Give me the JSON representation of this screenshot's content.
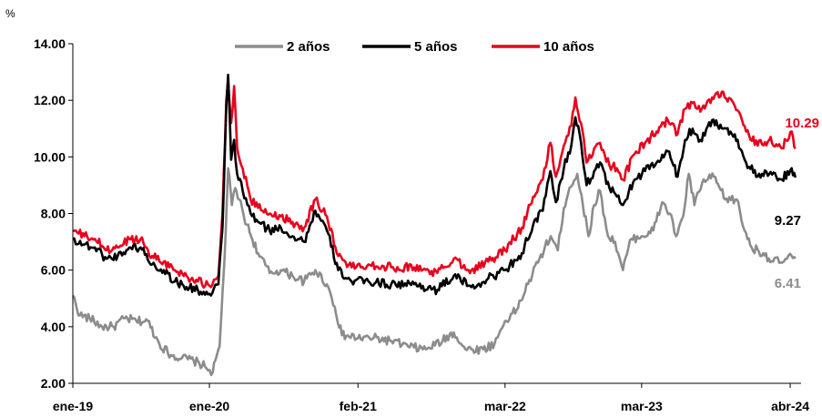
{
  "chart_data": {
    "type": "line",
    "y_unit": "%",
    "ylim": [
      2.0,
      14.0
    ],
    "y_ticks": [
      "2.00",
      "4.00",
      "6.00",
      "8.00",
      "10.00",
      "12.00",
      "14.00"
    ],
    "x_range": [
      "2019-01-01",
      "2024-04-30"
    ],
    "x_ticks": [
      {
        "label": "ene-19",
        "date": "2019-01-01"
      },
      {
        "label": "ene-20",
        "date": "2020-01-01"
      },
      {
        "label": "feb-21",
        "date": "2021-02-01"
      },
      {
        "label": "mar-22",
        "date": "2022-03-01"
      },
      {
        "label": "mar-23",
        "date": "2023-03-01"
      },
      {
        "label": "abr-24",
        "date": "2024-04-01"
      }
    ],
    "grid": false,
    "legend_position": "top",
    "series": [
      {
        "name": "2 años",
        "color": "#8c8c8c",
        "end_label": "6.41",
        "points": [
          [
            "2019-01-01",
            5.1
          ],
          [
            "2019-01-20",
            4.4
          ],
          [
            "2019-02-15",
            4.3
          ],
          [
            "2019-03-20",
            4.0
          ],
          [
            "2019-04-20",
            4.0
          ],
          [
            "2019-05-20",
            4.3
          ],
          [
            "2019-06-20",
            4.2
          ],
          [
            "2019-07-20",
            4.2
          ],
          [
            "2019-08-20",
            3.4
          ],
          [
            "2019-09-20",
            3.0
          ],
          [
            "2019-10-20",
            2.9
          ],
          [
            "2019-11-20",
            2.8
          ],
          [
            "2019-12-20",
            2.6
          ],
          [
            "2020-01-10",
            2.4
          ],
          [
            "2020-01-28",
            3.3
          ],
          [
            "2020-02-10",
            6.3
          ],
          [
            "2020-02-20",
            9.6
          ],
          [
            "2020-03-01",
            8.3
          ],
          [
            "2020-03-10",
            8.9
          ],
          [
            "2020-03-20",
            8.5
          ],
          [
            "2020-04-10",
            7.6
          ],
          [
            "2020-05-10",
            6.6
          ],
          [
            "2020-06-10",
            5.9
          ],
          [
            "2020-07-10",
            6.0
          ],
          [
            "2020-08-10",
            5.8
          ],
          [
            "2020-09-10",
            5.6
          ],
          [
            "2020-10-10",
            6.0
          ],
          [
            "2020-11-10",
            5.5
          ],
          [
            "2020-12-01",
            4.7
          ],
          [
            "2020-12-20",
            3.7
          ],
          [
            "2021-02-01",
            3.6
          ],
          [
            "2021-03-15",
            3.6
          ],
          [
            "2021-05-01",
            3.5
          ],
          [
            "2021-06-15",
            3.3
          ],
          [
            "2021-08-01",
            3.2
          ],
          [
            "2021-09-15",
            3.5
          ],
          [
            "2021-10-15",
            3.8
          ],
          [
            "2021-11-15",
            3.2
          ],
          [
            "2022-01-01",
            3.2
          ],
          [
            "2022-02-01",
            3.4
          ],
          [
            "2022-03-01",
            4.2
          ],
          [
            "2022-04-01",
            4.6
          ],
          [
            "2022-05-01",
            5.5
          ],
          [
            "2022-06-01",
            6.4
          ],
          [
            "2022-07-01",
            7.2
          ],
          [
            "2022-07-20",
            6.7
          ],
          [
            "2022-08-05",
            8.2
          ],
          [
            "2022-08-20",
            8.9
          ],
          [
            "2022-09-10",
            9.4
          ],
          [
            "2022-09-25",
            8.3
          ],
          [
            "2022-10-10",
            7.2
          ],
          [
            "2022-10-25",
            8.3
          ],
          [
            "2022-11-10",
            8.8
          ],
          [
            "2022-12-01",
            7.2
          ],
          [
            "2022-12-20",
            7.0
          ],
          [
            "2023-01-10",
            6.0
          ],
          [
            "2023-02-01",
            7.1
          ],
          [
            "2023-03-01",
            7.2
          ],
          [
            "2023-04-01",
            7.4
          ],
          [
            "2023-04-25",
            8.4
          ],
          [
            "2023-05-15",
            8.0
          ],
          [
            "2023-06-01",
            7.2
          ],
          [
            "2023-06-20",
            7.9
          ],
          [
            "2023-07-05",
            9.4
          ],
          [
            "2023-07-20",
            8.3
          ],
          [
            "2023-08-10",
            9.1
          ],
          [
            "2023-09-10",
            9.3
          ],
          [
            "2023-10-10",
            8.5
          ],
          [
            "2023-11-10",
            8.5
          ],
          [
            "2023-12-01",
            7.4
          ],
          [
            "2023-12-20",
            6.8
          ],
          [
            "2024-01-20",
            6.6
          ],
          [
            "2024-02-15",
            6.3
          ],
          [
            "2024-03-15",
            6.3
          ],
          [
            "2024-04-05",
            6.5
          ],
          [
            "2024-04-15",
            6.41
          ]
        ]
      },
      {
        "name": "5 años",
        "color": "#000000",
        "end_label": "9.27",
        "points": [
          [
            "2019-01-01",
            7.1
          ],
          [
            "2019-02-01",
            6.9
          ],
          [
            "2019-03-01",
            6.8
          ],
          [
            "2019-04-01",
            6.4
          ],
          [
            "2019-05-01",
            6.5
          ],
          [
            "2019-06-01",
            6.8
          ],
          [
            "2019-07-01",
            6.8
          ],
          [
            "2019-08-01",
            6.2
          ],
          [
            "2019-09-01",
            6.0
          ],
          [
            "2019-10-01",
            5.6
          ],
          [
            "2019-11-01",
            5.4
          ],
          [
            "2019-12-01",
            5.3
          ],
          [
            "2020-01-05",
            5.1
          ],
          [
            "2020-01-25",
            5.5
          ],
          [
            "2020-02-05",
            7.5
          ],
          [
            "2020-02-15",
            11.8
          ],
          [
            "2020-02-20",
            12.9
          ],
          [
            "2020-02-28",
            9.9
          ],
          [
            "2020-03-07",
            10.6
          ],
          [
            "2020-03-15",
            9.4
          ],
          [
            "2020-03-30",
            8.8
          ],
          [
            "2020-04-20",
            8.0
          ],
          [
            "2020-05-10",
            7.7
          ],
          [
            "2020-06-10",
            7.4
          ],
          [
            "2020-07-10",
            7.5
          ],
          [
            "2020-08-10",
            7.2
          ],
          [
            "2020-09-10",
            7.0
          ],
          [
            "2020-10-10",
            8.1
          ],
          [
            "2020-11-10",
            7.4
          ],
          [
            "2020-12-10",
            6.0
          ],
          [
            "2021-01-15",
            5.6
          ],
          [
            "2021-03-01",
            5.6
          ],
          [
            "2021-05-01",
            5.5
          ],
          [
            "2021-07-01",
            5.5
          ],
          [
            "2021-09-01",
            5.3
          ],
          [
            "2021-10-15",
            5.8
          ],
          [
            "2021-12-01",
            5.4
          ],
          [
            "2022-01-15",
            5.7
          ],
          [
            "2022-03-01",
            6.0
          ],
          [
            "2022-04-15",
            6.6
          ],
          [
            "2022-05-15",
            7.6
          ],
          [
            "2022-06-10",
            8.1
          ],
          [
            "2022-06-30",
            9.5
          ],
          [
            "2022-07-15",
            8.4
          ],
          [
            "2022-08-05",
            9.6
          ],
          [
            "2022-08-25",
            10.4
          ],
          [
            "2022-09-05",
            11.4
          ],
          [
            "2022-09-20",
            10.5
          ],
          [
            "2022-10-05",
            9.0
          ],
          [
            "2022-10-25",
            9.5
          ],
          [
            "2022-11-10",
            9.8
          ],
          [
            "2022-12-05",
            8.9
          ],
          [
            "2022-12-25",
            8.6
          ],
          [
            "2023-01-10",
            8.3
          ],
          [
            "2023-02-10",
            9.2
          ],
          [
            "2023-03-10",
            9.5
          ],
          [
            "2023-04-10",
            9.8
          ],
          [
            "2023-05-10",
            10.2
          ],
          [
            "2023-06-05",
            9.3
          ],
          [
            "2023-06-25",
            10.6
          ],
          [
            "2023-07-15",
            11.0
          ],
          [
            "2023-08-05",
            10.6
          ],
          [
            "2023-09-05",
            11.3
          ],
          [
            "2023-10-05",
            11.0
          ],
          [
            "2023-11-05",
            10.8
          ],
          [
            "2023-12-05",
            9.8
          ],
          [
            "2024-01-05",
            9.3
          ],
          [
            "2024-02-05",
            9.4
          ],
          [
            "2024-03-10",
            9.2
          ],
          [
            "2024-04-05",
            9.6
          ],
          [
            "2024-04-15",
            9.27
          ]
        ]
      },
      {
        "name": "10 años",
        "color": "#e8001c",
        "end_label": "10.29",
        "points": [
          [
            "2019-01-01",
            7.4
          ],
          [
            "2019-02-01",
            7.2
          ],
          [
            "2019-03-01",
            7.1
          ],
          [
            "2019-04-01",
            6.7
          ],
          [
            "2019-05-01",
            6.8
          ],
          [
            "2019-06-01",
            7.1
          ],
          [
            "2019-07-01",
            7.1
          ],
          [
            "2019-08-01",
            6.5
          ],
          [
            "2019-09-01",
            6.3
          ],
          [
            "2019-10-01",
            6.0
          ],
          [
            "2019-11-01",
            5.8
          ],
          [
            "2019-12-01",
            5.6
          ],
          [
            "2020-01-05",
            5.4
          ],
          [
            "2020-01-25",
            5.8
          ],
          [
            "2020-02-05",
            8.0
          ],
          [
            "2020-02-15",
            12.0
          ],
          [
            "2020-02-20",
            12.7
          ],
          [
            "2020-02-28",
            11.2
          ],
          [
            "2020-03-07",
            12.5
          ],
          [
            "2020-03-15",
            10.3
          ],
          [
            "2020-03-30",
            9.6
          ],
          [
            "2020-04-20",
            8.5
          ],
          [
            "2020-05-10",
            8.2
          ],
          [
            "2020-06-10",
            8.0
          ],
          [
            "2020-07-10",
            7.9
          ],
          [
            "2020-08-10",
            7.7
          ],
          [
            "2020-09-10",
            7.5
          ],
          [
            "2020-10-10",
            8.5
          ],
          [
            "2020-11-10",
            7.9
          ],
          [
            "2020-12-10",
            6.5
          ],
          [
            "2021-01-15",
            6.1
          ],
          [
            "2021-03-01",
            6.2
          ],
          [
            "2021-05-01",
            6.1
          ],
          [
            "2021-07-01",
            6.1
          ],
          [
            "2021-09-01",
            5.9
          ],
          [
            "2021-10-15",
            6.4
          ],
          [
            "2021-12-01",
            6.0
          ],
          [
            "2022-01-15",
            6.3
          ],
          [
            "2022-03-01",
            6.7
          ],
          [
            "2022-04-15",
            7.5
          ],
          [
            "2022-05-15",
            8.6
          ],
          [
            "2022-06-10",
            9.2
          ],
          [
            "2022-06-30",
            10.5
          ],
          [
            "2022-07-15",
            9.3
          ],
          [
            "2022-08-05",
            10.4
          ],
          [
            "2022-08-25",
            11.1
          ],
          [
            "2022-09-05",
            12.1
          ],
          [
            "2022-09-20",
            11.2
          ],
          [
            "2022-10-05",
            9.8
          ],
          [
            "2022-10-25",
            10.3
          ],
          [
            "2022-11-10",
            10.5
          ],
          [
            "2022-12-05",
            9.7
          ],
          [
            "2022-12-25",
            9.6
          ],
          [
            "2023-01-10",
            9.2
          ],
          [
            "2023-02-10",
            10.1
          ],
          [
            "2023-03-10",
            10.5
          ],
          [
            "2023-04-10",
            10.9
          ],
          [
            "2023-05-10",
            11.3
          ],
          [
            "2023-06-05",
            10.8
          ],
          [
            "2023-06-25",
            11.7
          ],
          [
            "2023-07-15",
            11.9
          ],
          [
            "2023-08-05",
            11.6
          ],
          [
            "2023-09-05",
            12.1
          ],
          [
            "2023-10-05",
            12.3
          ],
          [
            "2023-11-05",
            11.8
          ],
          [
            "2023-12-05",
            10.9
          ],
          [
            "2024-01-05",
            10.4
          ],
          [
            "2024-02-05",
            10.6
          ],
          [
            "2024-03-10",
            10.3
          ],
          [
            "2024-04-05",
            10.9
          ],
          [
            "2024-04-15",
            10.29
          ]
        ]
      }
    ]
  }
}
